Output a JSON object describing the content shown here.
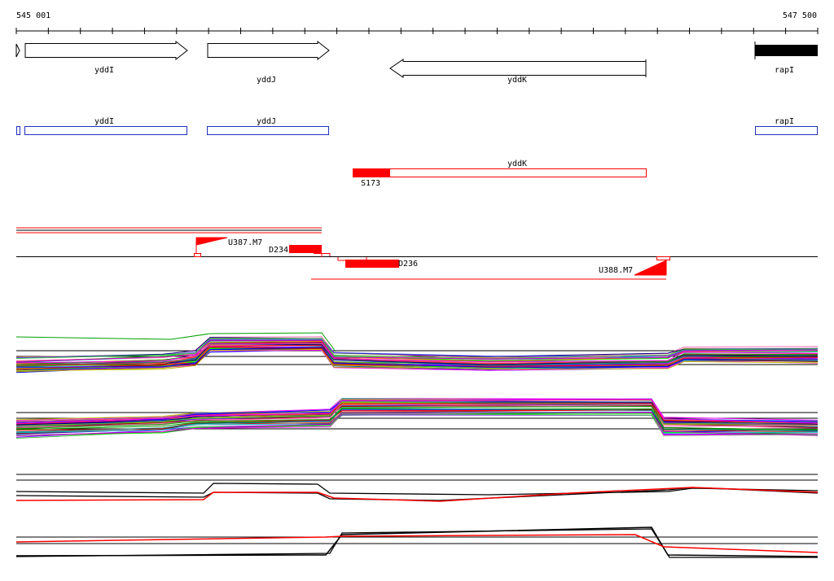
{
  "coordinates": {
    "start": "545 001",
    "end": "547 500",
    "start_bp": 545001,
    "end_bp": 547500
  },
  "colors": {
    "gene_outline": "#000000",
    "cds_outline": "#1f2fbf",
    "feature_red": "#ff0000",
    "axis": "#000000"
  },
  "genes": [
    {
      "label": "yddI",
      "strand": "+"
    },
    {
      "label": "yddJ",
      "strand": "+"
    },
    {
      "label": "yddK",
      "strand": "-"
    },
    {
      "label": "rapI",
      "strand": "+"
    }
  ],
  "cds": [
    {
      "label": "yddI"
    },
    {
      "label": "yddJ"
    },
    {
      "label": "rapI"
    }
  ],
  "highlight_feature": {
    "label": "yddK",
    "marker": "S173"
  },
  "probe_labels": {
    "u387": "U387.M7",
    "d234": "D234",
    "d236": "D236",
    "u388": "U388.M7"
  },
  "expression_tracks": [
    {
      "name": "profile-panel-1"
    },
    {
      "name": "profile-panel-2"
    },
    {
      "name": "summary-panel-1"
    },
    {
      "name": "summary-panel-2"
    }
  ]
}
